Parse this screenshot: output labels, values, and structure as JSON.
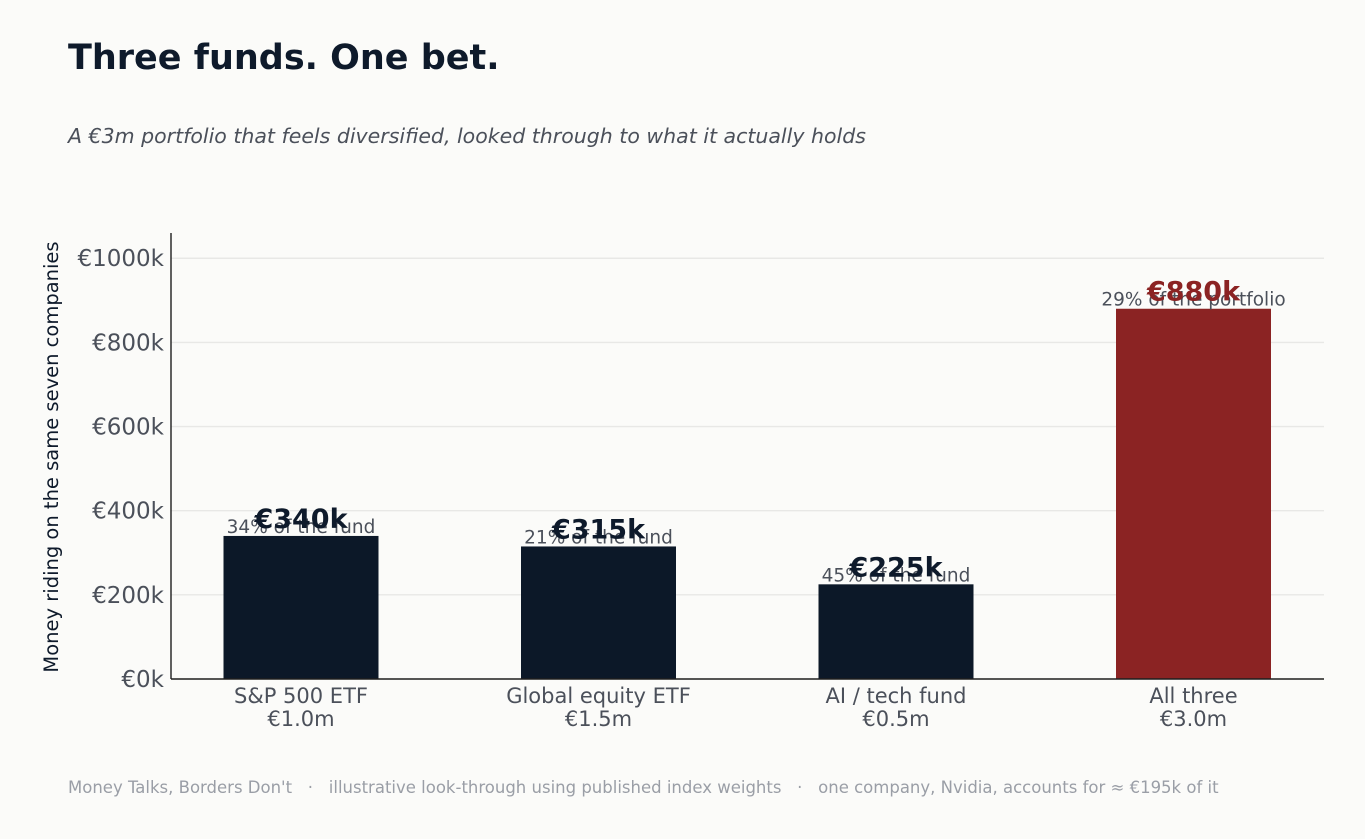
{
  "header": {
    "title": "Three funds. One bet.",
    "subtitle": "A €3m portfolio that feels diversified, looked through to what it actually holds"
  },
  "footer": {
    "text": "Money Talks, Borders Don't   ·   illustrative look-through using published index weights   ·   one company, Nvidia, accounts for ≈ €195k of it"
  },
  "colors": {
    "bar_default": "#0c1828",
    "bar_highlight": "#8b2323",
    "axis": "#1e1e1e",
    "grid": "#e8e8e6",
    "tick_text": "#4b505a",
    "value_default": "#0e1a2b",
    "value_highlight": "#8b2323"
  },
  "chart_data": {
    "type": "bar",
    "title": "",
    "xlabel": "",
    "ylabel": "Money riding on the same seven companies",
    "ylim": [
      0,
      1060
    ],
    "yticks": [
      {
        "value": 0,
        "label": "€0k"
      },
      {
        "value": 200,
        "label": "€200k"
      },
      {
        "value": 400,
        "label": "€400k"
      },
      {
        "value": 600,
        "label": "€600k"
      },
      {
        "value": 800,
        "label": "€800k"
      },
      {
        "value": 1000,
        "label": "€1000k"
      }
    ],
    "grid": true,
    "categories": [
      {
        "name": "S&P 500 ETF",
        "sub": "€1.0m"
      },
      {
        "name": "Global equity ETF",
        "sub": "€1.5m"
      },
      {
        "name": "AI / tech fund",
        "sub": "€0.5m"
      },
      {
        "name": "All three",
        "sub": "€3.0m"
      }
    ],
    "values": [
      340,
      315,
      225,
      880
    ],
    "value_labels": [
      "€340k",
      "€315k",
      "€225k",
      "€880k"
    ],
    "share_labels": [
      "34% of the fund",
      "21% of the fund",
      "45% of the fund",
      "29% of the portfolio"
    ],
    "highlight_index": 3
  }
}
